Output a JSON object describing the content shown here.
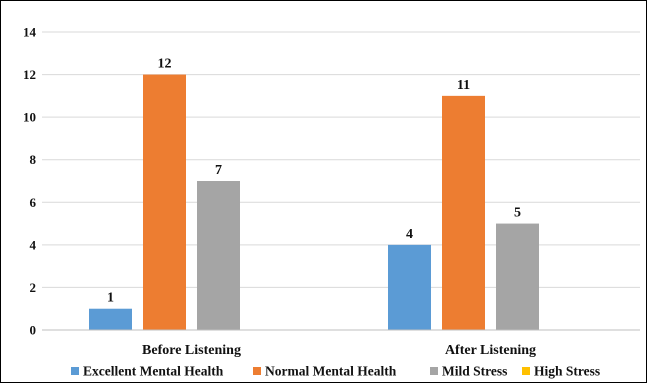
{
  "chart_data": {
    "type": "bar",
    "categories": [
      "Before Listening",
      "After Listening"
    ],
    "series": [
      {
        "name": "Excellent Mental Health",
        "values": [
          1,
          4
        ],
        "color": "#5B9BD5"
      },
      {
        "name": "Normal Mental Health",
        "values": [
          12,
          11
        ],
        "color": "#ED7D31"
      },
      {
        "name": "Mild Stress",
        "values": [
          7,
          5
        ],
        "color": "#A5A5A5"
      },
      {
        "name": "High Stress",
        "values": [
          0,
          0
        ],
        "color": "#FFC000"
      }
    ],
    "data_labels": [
      [
        "1",
        "4"
      ],
      [
        "12",
        "11"
      ],
      [
        "7",
        "5"
      ],
      [
        "",
        ""
      ]
    ],
    "yticks": [
      "0",
      "2",
      "4",
      "6",
      "8",
      "10",
      "12",
      "14"
    ],
    "ylim": [
      0,
      14
    ],
    "grid": true,
    "legend_position": "bottom"
  }
}
